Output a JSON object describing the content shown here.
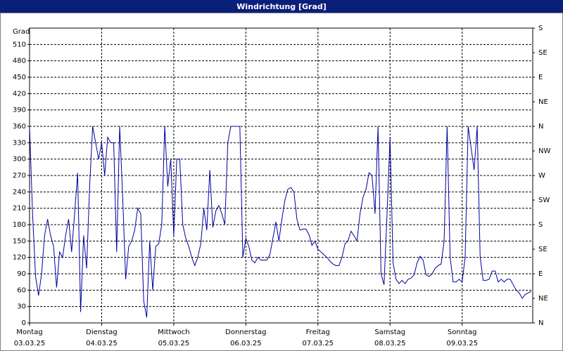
{
  "chart_data": {
    "type": "line",
    "title": "Windrichtung [Grad]",
    "ylabel": "Grad",
    "ylim": [
      0,
      540
    ],
    "yticks": [
      0,
      30,
      60,
      90,
      120,
      150,
      180,
      210,
      240,
      270,
      300,
      330,
      360,
      390,
      420,
      450,
      480,
      510
    ],
    "y2lim": [
      0,
      540
    ],
    "y2ticks": [
      {
        "value": 0,
        "label": "N"
      },
      {
        "value": 45,
        "label": "NE"
      },
      {
        "value": 90,
        "label": "E"
      },
      {
        "value": 135,
        "label": "SE"
      },
      {
        "value": 180,
        "label": "S"
      },
      {
        "value": 225,
        "label": "SW"
      },
      {
        "value": 270,
        "label": "W"
      },
      {
        "value": 315,
        "label": "NW"
      },
      {
        "value": 360,
        "label": "N"
      },
      {
        "value": 405,
        "label": "NE"
      },
      {
        "value": 450,
        "label": "E"
      },
      {
        "value": 495,
        "label": "SE"
      },
      {
        "value": 540,
        "label": "S"
      }
    ],
    "xlim": [
      0,
      167.5
    ],
    "xticks": [
      {
        "value": 0,
        "label": "Montag",
        "date": "03.03.25"
      },
      {
        "value": 24,
        "label": "Dienstag",
        "date": "04.03.25"
      },
      {
        "value": 48,
        "label": "Mittwoch",
        "date": "05.03.25"
      },
      {
        "value": 72,
        "label": "Donnerstag",
        "date": "06.03.25"
      },
      {
        "value": 96,
        "label": "Freitag",
        "date": "07.03.25"
      },
      {
        "value": 120,
        "label": "Samstag",
        "date": "08.03.25"
      },
      {
        "value": 144,
        "label": "Sonntag",
        "date": "09.03.25"
      }
    ],
    "grid": true,
    "x": [
      0,
      1,
      2,
      3,
      4,
      5,
      6,
      7,
      8,
      9,
      10,
      11,
      12,
      13,
      14,
      15,
      16,
      17,
      18,
      19,
      20,
      21,
      22,
      23,
      24,
      25,
      26,
      27,
      28,
      29,
      30,
      31,
      32,
      33,
      34,
      35,
      36,
      37,
      38,
      39,
      40,
      41,
      42,
      43,
      44,
      45,
      46,
      47,
      48,
      49,
      50,
      51,
      52,
      53,
      54,
      55,
      56,
      57,
      58,
      59,
      60,
      61,
      62,
      63,
      64,
      65,
      66,
      67,
      68,
      69,
      70,
      71,
      72,
      73,
      74,
      75,
      76,
      77,
      78,
      79,
      80,
      81,
      82,
      83,
      84,
      85,
      86,
      87,
      88,
      89,
      90,
      91,
      92,
      93,
      94,
      95,
      96,
      97,
      98,
      99,
      100,
      101,
      102,
      103,
      104,
      105,
      106,
      107,
      108,
      109,
      110,
      111,
      112,
      113,
      114,
      115,
      116,
      117,
      118,
      119,
      120,
      121,
      122,
      123,
      124,
      125,
      126,
      127,
      128,
      129,
      130,
      131,
      132,
      133,
      134,
      135,
      136,
      137,
      138,
      139,
      140,
      141,
      142,
      143,
      144,
      145,
      146,
      147,
      148,
      149,
      150,
      151,
      152,
      153,
      154,
      155,
      156,
      157,
      158,
      159,
      160,
      161,
      162,
      163,
      164,
      165,
      166,
      167
    ],
    "series": [
      {
        "color": "#0000a0",
        "values": [
          360,
          200,
          85,
          50,
          90,
          160,
          190,
          160,
          140,
          65,
          130,
          120,
          160,
          190,
          130,
          200,
          275,
          20,
          160,
          100,
          250,
          360,
          330,
          300,
          330,
          270,
          340,
          330,
          330,
          130,
          360,
          230,
          80,
          140,
          150,
          170,
          210,
          200,
          40,
          10,
          150,
          60,
          140,
          145,
          180,
          360,
          250,
          300,
          160,
          300,
          300,
          180,
          155,
          140,
          120,
          105,
          120,
          145,
          210,
          170,
          280,
          175,
          205,
          215,
          200,
          180,
          330,
          360,
          360,
          360,
          360,
          120,
          155,
          140,
          115,
          110,
          120,
          115,
          115,
          115,
          125,
          155,
          185,
          150,
          190,
          225,
          245,
          248,
          240,
          190,
          170,
          172,
          172,
          162,
          142,
          150,
          135,
          130,
          125,
          120,
          113,
          108,
          105,
          105,
          120,
          145,
          150,
          168,
          160,
          150,
          200,
          230,
          245,
          275,
          270,
          200,
          360,
          90,
          70,
          200,
          340,
          110,
          80,
          72,
          78,
          72,
          80,
          82,
          88,
          110,
          122,
          115,
          88,
          85,
          90,
          100,
          105,
          108,
          150,
          360,
          120,
          75,
          75,
          80,
          75,
          120,
          360,
          320,
          280,
          360,
          120,
          78,
          78,
          80,
          95,
          95,
          75,
          80,
          75,
          80,
          80,
          70,
          60,
          55,
          45,
          52,
          55,
          58
        ]
      }
    ]
  }
}
